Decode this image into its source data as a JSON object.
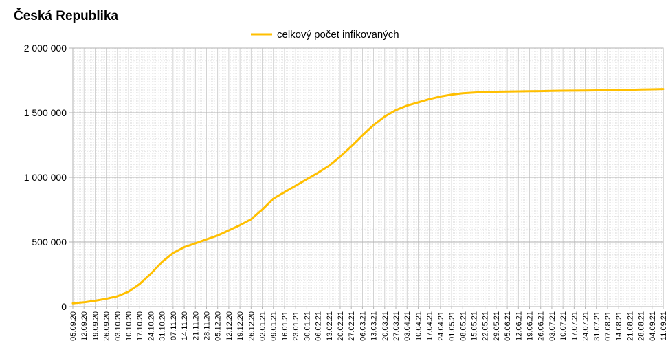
{
  "chart_data": {
    "type": "line",
    "title": "Česká Republika",
    "legend_position": "top-center",
    "grid": true,
    "ylim": [
      0,
      2000000
    ],
    "y_ticks": [
      {
        "value": 0,
        "label": "0"
      },
      {
        "value": 500000,
        "label": "500 000"
      },
      {
        "value": 1000000,
        "label": "1 000 000"
      },
      {
        "value": 1500000,
        "label": "1 500 000"
      },
      {
        "value": 2000000,
        "label": "2 000 000"
      }
    ],
    "x_tick_labels": [
      "05.09.20",
      "12.09.20",
      "19.09.20",
      "26.09.20",
      "03.10.20",
      "10.10.20",
      "17.10.20",
      "24.10.20",
      "31.10.20",
      "07.11.20",
      "14.11.20",
      "21.11.20",
      "28.11.20",
      "05.12.20",
      "12.12.20",
      "19.12.20",
      "26.12.20",
      "02.01.21",
      "09.01.21",
      "16.01.21",
      "23.01.21",
      "30.01.21",
      "06.02.21",
      "13.02.21",
      "20.02.21",
      "27.02.21",
      "06.03.21",
      "13.03.21",
      "20.03.21",
      "27.03.21",
      "03.04.21",
      "10.04.21",
      "17.04.21",
      "24.04.21",
      "01.05.21",
      "08.05.21",
      "15.05.21",
      "22.05.21",
      "29.05.21",
      "05.06.21",
      "12.06.21",
      "19.06.21",
      "26.06.21",
      "03.07.21",
      "10.07.21",
      "17.07.21",
      "24.07.21",
      "31.07.21",
      "07.08.21",
      "14.08.21",
      "21.08.21",
      "28.08.21",
      "04.09.21",
      "11.09.21"
    ],
    "series": [
      {
        "name": "celkový počet infikovaných",
        "color": "#ffbf00",
        "x": [
          "05.09.20",
          "12.09.20",
          "19.09.20",
          "26.09.20",
          "03.10.20",
          "10.10.20",
          "17.10.20",
          "24.10.20",
          "31.10.20",
          "07.11.20",
          "14.11.20",
          "21.11.20",
          "28.11.20",
          "05.12.20",
          "12.12.20",
          "19.12.20",
          "26.12.20",
          "02.01.21",
          "09.01.21",
          "16.01.21",
          "23.01.21",
          "30.01.21",
          "06.02.21",
          "13.02.21",
          "20.02.21",
          "27.02.21",
          "06.03.21",
          "13.03.21",
          "20.03.21",
          "27.03.21",
          "03.04.21",
          "10.04.21",
          "17.04.21",
          "24.04.21",
          "01.05.21",
          "08.05.21",
          "15.05.21",
          "22.05.21",
          "29.05.21",
          "05.06.21",
          "12.06.21",
          "19.06.21",
          "26.06.21",
          "03.07.21",
          "10.07.21",
          "17.07.21",
          "24.07.21",
          "31.07.21",
          "07.08.21",
          "14.08.21",
          "21.08.21",
          "28.08.21",
          "04.09.21",
          "11.09.21"
        ],
        "values": [
          25000,
          33000,
          45000,
          60000,
          80000,
          115000,
          175000,
          255000,
          345000,
          415000,
          460000,
          490000,
          520000,
          550000,
          590000,
          630000,
          675000,
          750000,
          835000,
          885000,
          935000,
          985000,
          1035000,
          1090000,
          1160000,
          1240000,
          1325000,
          1405000,
          1470000,
          1520000,
          1555000,
          1580000,
          1605000,
          1625000,
          1640000,
          1650000,
          1656000,
          1660000,
          1662000,
          1664000,
          1665000,
          1666000,
          1667000,
          1669000,
          1670000,
          1671000,
          1672000,
          1673000,
          1674000,
          1675000,
          1677000,
          1679000,
          1681000,
          1683000
        ]
      }
    ]
  }
}
